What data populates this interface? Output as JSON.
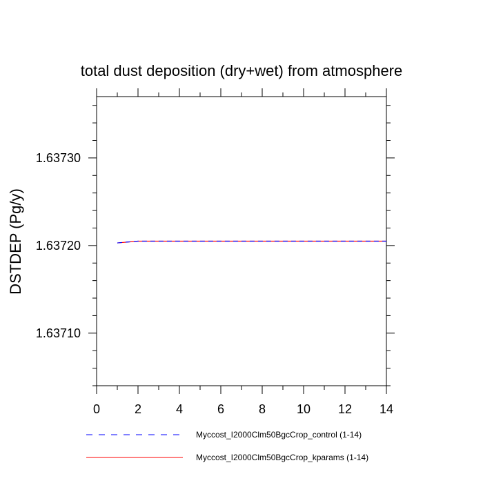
{
  "chart_data": {
    "type": "line",
    "title": "total dust deposition (dry+wet) from atmosphere",
    "xlabel": "",
    "ylabel": "DSTDEP  (Pg/y)",
    "xlim": [
      0,
      14
    ],
    "ylim": [
      1.63704,
      1.63737
    ],
    "xticks": [
      0,
      2,
      4,
      6,
      8,
      10,
      12,
      14
    ],
    "xtick_labels": [
      "0",
      "2",
      "4",
      "6",
      "8",
      "10",
      "12",
      "14"
    ],
    "yticks": [
      1.6371,
      1.6372,
      1.6373
    ],
    "ytick_labels": [
      "1.63710",
      "1.63720",
      "1.63730"
    ],
    "grid": false,
    "legend_position": "bottom",
    "series": [
      {
        "name": "Myccost_I2000Clm50BgcCrop_control (1-14)",
        "color": "#0000ff",
        "style": "dashed",
        "x": [
          1,
          2,
          3,
          4,
          5,
          6,
          7,
          8,
          9,
          10,
          11,
          12,
          13,
          14
        ],
        "y": [
          1.637203,
          1.637205,
          1.637205,
          1.637205,
          1.637205,
          1.637205,
          1.637205,
          1.637205,
          1.637205,
          1.637205,
          1.637205,
          1.637205,
          1.637205,
          1.637205
        ]
      },
      {
        "name": "Myccost_I2000Clm50BgcCrop_kparams (1-14)",
        "color": "#ff0000",
        "style": "solid",
        "x": [
          1,
          2,
          3,
          4,
          5,
          6,
          7,
          8,
          9,
          10,
          11,
          12,
          13,
          14
        ],
        "y": [
          1.637203,
          1.637205,
          1.637205,
          1.637205,
          1.637205,
          1.637205,
          1.637205,
          1.637205,
          1.637205,
          1.637205,
          1.637205,
          1.637205,
          1.637205,
          1.637205
        ]
      }
    ]
  }
}
